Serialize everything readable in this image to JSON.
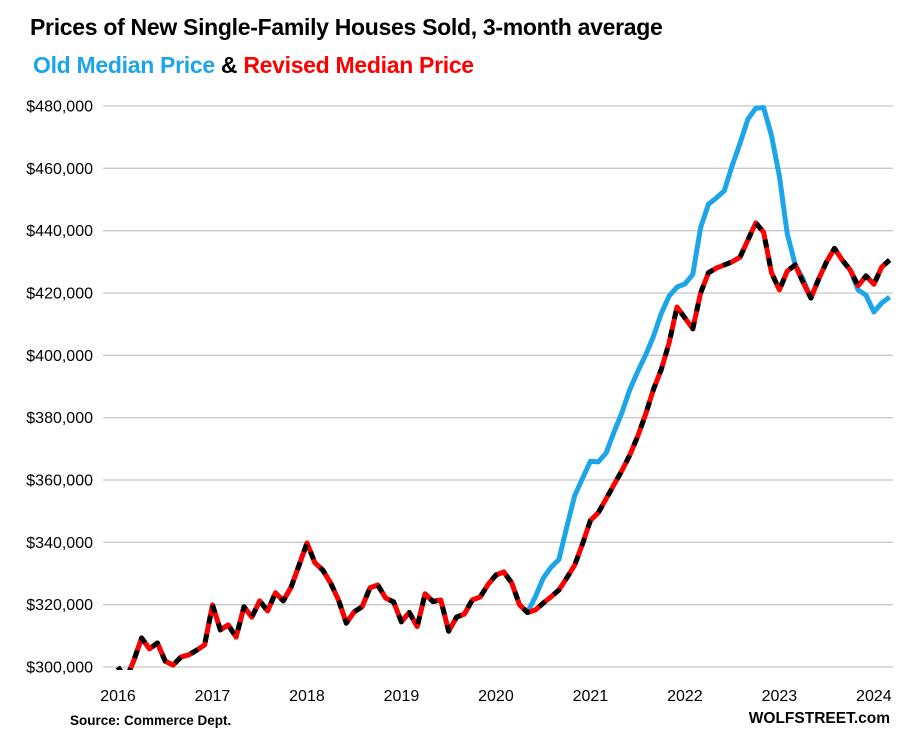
{
  "colors": {
    "old_series": "#1CA5E8",
    "revised_series": "#FF0000",
    "revised_dash_overlay": "#000000",
    "gridline": "#C8C8C8",
    "text": "#000000",
    "background": "#FFFFFF"
  },
  "header": {
    "legend_separator": " & "
  },
  "footer": {
    "source": "Source: Commerce Dept.",
    "watermark": "WOLFSTREET.com"
  },
  "chart_data": {
    "type": "line",
    "title": "Prices of New Single-Family Houses Sold, 3-month average",
    "unit": "USD thousands",
    "frequency": "monthly",
    "start": "2016-01",
    "end": "2024-03",
    "grid": "horizontal-only",
    "legend_position": "subtitle",
    "ylim": [
      300,
      480
    ],
    "ytick_step": 20,
    "y_ticks": [
      {
        "v": 300,
        "label": "$300,000"
      },
      {
        "v": 320,
        "label": "$320,000"
      },
      {
        "v": 340,
        "label": "$340,000"
      },
      {
        "v": 360,
        "label": "$360,000"
      },
      {
        "v": 380,
        "label": "$380,000"
      },
      {
        "v": 400,
        "label": "$400,000"
      },
      {
        "v": 420,
        "label": "$420,000"
      },
      {
        "v": 440,
        "label": "$440,000"
      },
      {
        "v": 460,
        "label": "$460,000"
      },
      {
        "v": 480,
        "label": "$480,000"
      }
    ],
    "x_ticks": [
      {
        "year": 2016,
        "label": "2016"
      },
      {
        "year": 2017,
        "label": "2017"
      },
      {
        "year": 2018,
        "label": "2018"
      },
      {
        "year": 2019,
        "label": "2019"
      },
      {
        "year": 2020,
        "label": "2020"
      },
      {
        "year": 2021,
        "label": "2021"
      },
      {
        "year": 2022,
        "label": "2022"
      },
      {
        "year": 2023,
        "label": "2023"
      },
      {
        "year": 2024,
        "label": "2024"
      }
    ],
    "series": [
      {
        "name": "Old Median Price",
        "color_key": "old_series",
        "style": "solid",
        "values": [
          300.0,
          296.0,
          302.0,
          309.3,
          305.8,
          307.7,
          301.9,
          300.6,
          303.2,
          303.9,
          305.4,
          307.1,
          319.9,
          311.9,
          313.5,
          309.6,
          319.3,
          316.0,
          321.2,
          318.0,
          323.8,
          321.2,
          325.7,
          332.7,
          339.8,
          333.5,
          331.1,
          327.0,
          321.5,
          314.1,
          317.7,
          319.3,
          325.4,
          326.3,
          322.1,
          320.9,
          314.5,
          317.5,
          313.0,
          323.5,
          321.0,
          321.5,
          311.5,
          316.0,
          317.0,
          321.5,
          322.5,
          326.5,
          329.5,
          330.5,
          327.0,
          320.0,
          317.5,
          322.5,
          328.5,
          332.0,
          334.5,
          345.0,
          355.0,
          360.5,
          366.0,
          365.8,
          368.7,
          375.4,
          381.6,
          389.0,
          394.8,
          400.0,
          406.0,
          413.5,
          419.0,
          421.9,
          422.9,
          426.0,
          441.0,
          448.5,
          450.5,
          452.8,
          460.8,
          468.0,
          475.8,
          479.3,
          479.5,
          470.5,
          457.5,
          439.1,
          429.2,
          424.5,
          418.4,
          424.5,
          430.0,
          434.3,
          430.5,
          427.4,
          421.0,
          419.3,
          413.9,
          416.8,
          418.7
        ]
      },
      {
        "name": "Revised Median Price",
        "color_key": "revised_series",
        "style": "solid-with-black-dash-overlay",
        "values": [
          300.0,
          296.0,
          302.0,
          309.3,
          305.8,
          307.7,
          301.9,
          300.6,
          303.2,
          303.9,
          305.4,
          307.1,
          319.9,
          311.9,
          313.5,
          309.6,
          319.3,
          316.0,
          321.2,
          318.0,
          323.8,
          321.2,
          325.7,
          332.7,
          339.8,
          333.5,
          331.1,
          327.0,
          321.5,
          314.1,
          317.7,
          319.3,
          325.4,
          326.3,
          322.1,
          320.9,
          314.5,
          317.5,
          313.0,
          323.5,
          321.0,
          321.5,
          311.5,
          316.0,
          317.0,
          321.5,
          322.5,
          326.5,
          329.5,
          330.5,
          327.0,
          320.0,
          317.5,
          318.3,
          320.5,
          322.5,
          324.7,
          328.6,
          332.7,
          339.5,
          347.0,
          349.5,
          354.0,
          358.5,
          363.0,
          368.0,
          374.0,
          381.0,
          389.0,
          395.5,
          404.0,
          415.5,
          412.0,
          408.5,
          420.0,
          426.5,
          428.0,
          429.0,
          430.0,
          431.5,
          437.0,
          442.5,
          439.5,
          426.5,
          421.0,
          427.0,
          429.0,
          423.5,
          418.4,
          424.5,
          430.0,
          434.3,
          430.5,
          427.4,
          422.3,
          425.5,
          422.8,
          428.3,
          430.6
        ]
      }
    ]
  }
}
